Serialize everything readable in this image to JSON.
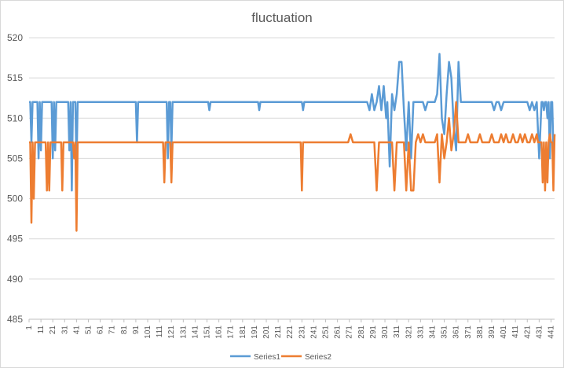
{
  "chart_data": {
    "type": "line",
    "title": "fluctuation",
    "xlabel": "",
    "ylabel": "",
    "ylim": [
      485,
      520
    ],
    "yticks": [
      485,
      490,
      495,
      500,
      505,
      510,
      515,
      520
    ],
    "x_range": [
      1,
      444
    ],
    "xticks": [
      1,
      11,
      21,
      31,
      41,
      51,
      61,
      71,
      81,
      91,
      101,
      111,
      121,
      131,
      141,
      151,
      161,
      171,
      181,
      191,
      201,
      211,
      221,
      231,
      241,
      251,
      261,
      271,
      281,
      291,
      301,
      311,
      321,
      331,
      341,
      351,
      361,
      371,
      381,
      391,
      401,
      411,
      421,
      431,
      441
    ],
    "grid": "horizontal",
    "legend": "bottom",
    "series": [
      {
        "name": "Series1",
        "color": "#5b9bd5",
        "points": [
          [
            1,
            512
          ],
          [
            2,
            512
          ],
          [
            3,
            507
          ],
          [
            4,
            512
          ],
          [
            5,
            512
          ],
          [
            6,
            512
          ],
          [
            7,
            512
          ],
          [
            8,
            512
          ],
          [
            9,
            505
          ],
          [
            10,
            512
          ],
          [
            11,
            506
          ],
          [
            12,
            512
          ],
          [
            13,
            512
          ],
          [
            14,
            512
          ],
          [
            15,
            512
          ],
          [
            16,
            512
          ],
          [
            17,
            512
          ],
          [
            18,
            512
          ],
          [
            19,
            512
          ],
          [
            20,
            512
          ],
          [
            21,
            505
          ],
          [
            22,
            512
          ],
          [
            23,
            506
          ],
          [
            24,
            512
          ],
          [
            25,
            512
          ],
          [
            26,
            512
          ],
          [
            27,
            512
          ],
          [
            28,
            512
          ],
          [
            29,
            512
          ],
          [
            30,
            512
          ],
          [
            31,
            512
          ],
          [
            32,
            512
          ],
          [
            33,
            512
          ],
          [
            34,
            512
          ],
          [
            35,
            506
          ],
          [
            36,
            512
          ],
          [
            37,
            501
          ],
          [
            38,
            512
          ],
          [
            39,
            512
          ],
          [
            40,
            512
          ],
          [
            41,
            504
          ],
          [
            42,
            512
          ],
          [
            43,
            512
          ],
          [
            44,
            512
          ],
          [
            45,
            512
          ],
          [
            90,
            512
          ],
          [
            91,
            512
          ],
          [
            92,
            507
          ],
          [
            93,
            512
          ],
          [
            94,
            512
          ],
          [
            95,
            512
          ],
          [
            96,
            512
          ],
          [
            115,
            512
          ],
          [
            116,
            512
          ],
          [
            117,
            512
          ],
          [
            118,
            505
          ],
          [
            119,
            512
          ],
          [
            120,
            512
          ],
          [
            121,
            506
          ],
          [
            122,
            512
          ],
          [
            123,
            512
          ],
          [
            124,
            512
          ],
          [
            125,
            512
          ],
          [
            152,
            512
          ],
          [
            153,
            511
          ],
          [
            154,
            512
          ],
          [
            155,
            512
          ],
          [
            194,
            512
          ],
          [
            195,
            511
          ],
          [
            196,
            512
          ],
          [
            197,
            512
          ],
          [
            231,
            512
          ],
          [
            232,
            511
          ],
          [
            233,
            512
          ],
          [
            234,
            512
          ],
          [
            286,
            512
          ],
          [
            288,
            511
          ],
          [
            290,
            513
          ],
          [
            292,
            511
          ],
          [
            294,
            512
          ],
          [
            296,
            514
          ],
          [
            298,
            511
          ],
          [
            300,
            514
          ],
          [
            302,
            510
          ],
          [
            303,
            512
          ],
          [
            305,
            504
          ],
          [
            307,
            513
          ],
          [
            309,
            511
          ],
          [
            311,
            513
          ],
          [
            313,
            517
          ],
          [
            315,
            517
          ],
          [
            317,
            511
          ],
          [
            319,
            506
          ],
          [
            321,
            512
          ],
          [
            323,
            505
          ],
          [
            325,
            512
          ],
          [
            327,
            512
          ],
          [
            329,
            512
          ],
          [
            331,
            512
          ],
          [
            333,
            512
          ],
          [
            335,
            511
          ],
          [
            337,
            512
          ],
          [
            339,
            512
          ],
          [
            341,
            512
          ],
          [
            343,
            512
          ],
          [
            345,
            513
          ],
          [
            347,
            518
          ],
          [
            349,
            510
          ],
          [
            351,
            508
          ],
          [
            353,
            513
          ],
          [
            355,
            517
          ],
          [
            357,
            515
          ],
          [
            359,
            509
          ],
          [
            361,
            506
          ],
          [
            363,
            517
          ],
          [
            365,
            512
          ],
          [
            367,
            512
          ],
          [
            369,
            512
          ],
          [
            371,
            512
          ],
          [
            381,
            512
          ],
          [
            391,
            512
          ],
          [
            393,
            511
          ],
          [
            395,
            512
          ],
          [
            397,
            512
          ],
          [
            399,
            511
          ],
          [
            401,
            512
          ],
          [
            411,
            512
          ],
          [
            421,
            512
          ],
          [
            423,
            511
          ],
          [
            425,
            512
          ],
          [
            427,
            511
          ],
          [
            429,
            512
          ],
          [
            431,
            505
          ],
          [
            433,
            512
          ],
          [
            434,
            512
          ],
          [
            435,
            511
          ],
          [
            436,
            512
          ],
          [
            437,
            512
          ],
          [
            438,
            510
          ],
          [
            439,
            512
          ],
          [
            440,
            505
          ],
          [
            441,
            512
          ],
          [
            442,
            512
          ],
          [
            443,
            506
          ],
          [
            444,
            508
          ]
        ]
      },
      {
        "name": "Series2",
        "color": "#ed7d31",
        "points": [
          [
            1,
            507
          ],
          [
            2,
            507
          ],
          [
            3,
            497
          ],
          [
            4,
            507
          ],
          [
            5,
            500
          ],
          [
            6,
            507
          ],
          [
            7,
            507
          ],
          [
            8,
            507
          ],
          [
            9,
            507
          ],
          [
            10,
            507
          ],
          [
            11,
            507
          ],
          [
            12,
            507
          ],
          [
            13,
            507
          ],
          [
            14,
            507
          ],
          [
            15,
            507
          ],
          [
            16,
            501
          ],
          [
            17,
            507
          ],
          [
            18,
            501
          ],
          [
            19,
            507
          ],
          [
            20,
            507
          ],
          [
            21,
            507
          ],
          [
            22,
            507
          ],
          [
            23,
            507
          ],
          [
            24,
            507
          ],
          [
            25,
            507
          ],
          [
            26,
            507
          ],
          [
            27,
            507
          ],
          [
            28,
            507
          ],
          [
            29,
            501
          ],
          [
            30,
            507
          ],
          [
            31,
            507
          ],
          [
            32,
            507
          ],
          [
            33,
            507
          ],
          [
            34,
            507
          ],
          [
            35,
            507
          ],
          [
            36,
            507
          ],
          [
            37,
            507
          ],
          [
            38,
            507
          ],
          [
            39,
            505
          ],
          [
            40,
            507
          ],
          [
            41,
            496
          ],
          [
            42,
            507
          ],
          [
            43,
            507
          ],
          [
            44,
            507
          ],
          [
            45,
            507
          ],
          [
            113,
            507
          ],
          [
            114,
            507
          ],
          [
            115,
            502
          ],
          [
            116,
            507
          ],
          [
            117,
            507
          ],
          [
            118,
            507
          ],
          [
            119,
            507
          ],
          [
            120,
            507
          ],
          [
            121,
            502
          ],
          [
            122,
            507
          ],
          [
            123,
            507
          ],
          [
            229,
            507
          ],
          [
            230,
            507
          ],
          [
            231,
            501
          ],
          [
            232,
            507
          ],
          [
            233,
            507
          ],
          [
            270,
            507
          ],
          [
            272,
            508
          ],
          [
            274,
            507
          ],
          [
            276,
            507
          ],
          [
            291,
            507
          ],
          [
            292,
            507
          ],
          [
            294,
            501
          ],
          [
            296,
            507
          ],
          [
            298,
            507
          ],
          [
            303,
            507
          ],
          [
            305,
            507
          ],
          [
            307,
            507
          ],
          [
            309,
            501
          ],
          [
            311,
            507
          ],
          [
            313,
            507
          ],
          [
            315,
            507
          ],
          [
            317,
            507
          ],
          [
            319,
            501
          ],
          [
            321,
            507
          ],
          [
            323,
            501
          ],
          [
            325,
            501
          ],
          [
            327,
            507
          ],
          [
            329,
            508
          ],
          [
            331,
            507
          ],
          [
            333,
            508
          ],
          [
            335,
            507
          ],
          [
            337,
            507
          ],
          [
            339,
            507
          ],
          [
            341,
            507
          ],
          [
            343,
            507
          ],
          [
            345,
            508
          ],
          [
            347,
            502
          ],
          [
            349,
            508
          ],
          [
            351,
            505
          ],
          [
            353,
            507
          ],
          [
            355,
            510
          ],
          [
            357,
            506
          ],
          [
            359,
            508
          ],
          [
            361,
            512
          ],
          [
            363,
            507
          ],
          [
            365,
            507
          ],
          [
            367,
            507
          ],
          [
            369,
            507
          ],
          [
            371,
            508
          ],
          [
            373,
            507
          ],
          [
            375,
            507
          ],
          [
            377,
            507
          ],
          [
            379,
            507
          ],
          [
            381,
            508
          ],
          [
            383,
            507
          ],
          [
            385,
            507
          ],
          [
            387,
            507
          ],
          [
            389,
            507
          ],
          [
            391,
            508
          ],
          [
            393,
            507
          ],
          [
            395,
            507
          ],
          [
            397,
            507
          ],
          [
            399,
            508
          ],
          [
            401,
            507
          ],
          [
            403,
            508
          ],
          [
            405,
            507
          ],
          [
            407,
            507
          ],
          [
            409,
            508
          ],
          [
            411,
            507
          ],
          [
            413,
            507
          ],
          [
            415,
            508
          ],
          [
            417,
            507
          ],
          [
            419,
            508
          ],
          [
            421,
            507
          ],
          [
            423,
            507
          ],
          [
            425,
            508
          ],
          [
            427,
            507
          ],
          [
            429,
            508
          ],
          [
            430,
            507
          ],
          [
            431,
            507
          ],
          [
            432,
            507
          ],
          [
            433,
            507
          ],
          [
            434,
            502
          ],
          [
            435,
            507
          ],
          [
            436,
            501
          ],
          [
            437,
            507
          ],
          [
            438,
            502
          ],
          [
            439,
            507
          ],
          [
            440,
            508
          ],
          [
            441,
            507
          ],
          [
            442,
            507
          ],
          [
            443,
            501
          ],
          [
            444,
            508
          ]
        ]
      }
    ]
  }
}
